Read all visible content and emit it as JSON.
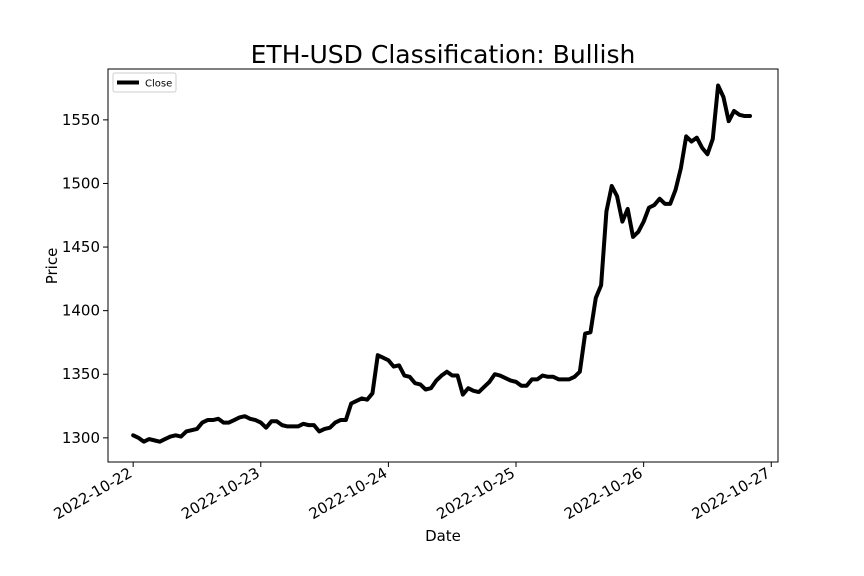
{
  "chart_data": {
    "type": "line",
    "title": "ETH-USD Classification: Bullish",
    "xlabel": "Date",
    "ylabel": "Price",
    "x_range": [
      "2022-10-21T19:16",
      "2022-10-27T01:16"
    ],
    "ylim": [
      1281,
      1590
    ],
    "x_ticks": [
      "2022-10-22",
      "2022-10-23",
      "2022-10-24",
      "2022-10-25",
      "2022-10-26",
      "2022-10-27"
    ],
    "y_ticks": [
      1300,
      1350,
      1400,
      1450,
      1500,
      1550
    ],
    "grid": false,
    "legend_position": "upper-left",
    "colors": {
      "line": "#000000",
      "frame": "#000000",
      "background": "#ffffff"
    },
    "series": [
      {
        "name": "Close",
        "x": [
          "2022-10-22T00:00",
          "2022-10-22T01:00",
          "2022-10-22T02:00",
          "2022-10-22T03:00",
          "2022-10-22T04:00",
          "2022-10-22T05:00",
          "2022-10-22T06:00",
          "2022-10-22T07:00",
          "2022-10-22T08:00",
          "2022-10-22T09:00",
          "2022-10-22T10:00",
          "2022-10-22T11:00",
          "2022-10-22T12:00",
          "2022-10-22T13:00",
          "2022-10-22T14:00",
          "2022-10-22T15:00",
          "2022-10-22T16:00",
          "2022-10-22T17:00",
          "2022-10-22T18:00",
          "2022-10-22T19:00",
          "2022-10-22T20:00",
          "2022-10-22T21:00",
          "2022-10-22T22:00",
          "2022-10-22T23:00",
          "2022-10-23T00:00",
          "2022-10-23T01:00",
          "2022-10-23T02:00",
          "2022-10-23T03:00",
          "2022-10-23T04:00",
          "2022-10-23T05:00",
          "2022-10-23T06:00",
          "2022-10-23T07:00",
          "2022-10-23T08:00",
          "2022-10-23T09:00",
          "2022-10-23T10:00",
          "2022-10-23T11:00",
          "2022-10-23T12:00",
          "2022-10-23T13:00",
          "2022-10-23T14:00",
          "2022-10-23T15:00",
          "2022-10-23T16:00",
          "2022-10-23T17:00",
          "2022-10-23T18:00",
          "2022-10-23T19:00",
          "2022-10-23T20:00",
          "2022-10-23T21:00",
          "2022-10-23T22:00",
          "2022-10-23T23:00",
          "2022-10-24T00:00",
          "2022-10-24T01:00",
          "2022-10-24T02:00",
          "2022-10-24T03:00",
          "2022-10-24T04:00",
          "2022-10-24T05:00",
          "2022-10-24T06:00",
          "2022-10-24T07:00",
          "2022-10-24T08:00",
          "2022-10-24T09:00",
          "2022-10-24T10:00",
          "2022-10-24T11:00",
          "2022-10-24T12:00",
          "2022-10-24T13:00",
          "2022-10-24T14:00",
          "2022-10-24T15:00",
          "2022-10-24T16:00",
          "2022-10-24T17:00",
          "2022-10-24T18:00",
          "2022-10-24T19:00",
          "2022-10-24T20:00",
          "2022-10-24T21:00",
          "2022-10-24T22:00",
          "2022-10-24T23:00",
          "2022-10-25T00:00",
          "2022-10-25T01:00",
          "2022-10-25T02:00",
          "2022-10-25T03:00",
          "2022-10-25T04:00",
          "2022-10-25T05:00",
          "2022-10-25T06:00",
          "2022-10-25T07:00",
          "2022-10-25T08:00",
          "2022-10-25T09:00",
          "2022-10-25T10:00",
          "2022-10-25T11:00",
          "2022-10-25T12:00",
          "2022-10-25T13:00",
          "2022-10-25T14:00",
          "2022-10-25T15:00",
          "2022-10-25T16:00",
          "2022-10-25T17:00",
          "2022-10-25T18:00",
          "2022-10-25T19:00",
          "2022-10-25T20:00",
          "2022-10-25T21:00",
          "2022-10-25T22:00",
          "2022-10-25T23:00",
          "2022-10-26T00:00",
          "2022-10-26T01:00",
          "2022-10-26T02:00",
          "2022-10-26T03:00",
          "2022-10-26T04:00",
          "2022-10-26T05:00",
          "2022-10-26T06:00",
          "2022-10-26T07:00",
          "2022-10-26T08:00",
          "2022-10-26T09:00",
          "2022-10-26T10:00",
          "2022-10-26T11:00",
          "2022-10-26T12:00",
          "2022-10-26T13:00",
          "2022-10-26T14:00",
          "2022-10-26T15:00",
          "2022-10-26T16:00",
          "2022-10-26T17:00",
          "2022-10-26T18:00",
          "2022-10-26T19:00",
          "2022-10-26T20:00"
        ],
        "values": [
          1302,
          1300,
          1297,
          1299,
          1298,
          1297,
          1299,
          1301,
          1302,
          1301,
          1305,
          1306,
          1307,
          1312,
          1314,
          1314,
          1315,
          1312,
          1312,
          1314,
          1316,
          1317,
          1315,
          1314,
          1312,
          1308,
          1313,
          1313,
          1310,
          1309,
          1309,
          1309,
          1311,
          1310,
          1310,
          1305,
          1307,
          1308,
          1312,
          1314,
          1314,
          1327,
          1329,
          1331,
          1330,
          1335,
          1365,
          1363,
          1361,
          1356,
          1357,
          1349,
          1348,
          1343,
          1342,
          1338,
          1339,
          1345,
          1349,
          1352,
          1349,
          1349,
          1334,
          1339,
          1337,
          1336,
          1340,
          1344,
          1350,
          1349,
          1347,
          1345,
          1344,
          1341,
          1341,
          1346,
          1346,
          1349,
          1348,
          1348,
          1346,
          1346,
          1346,
          1348,
          1352,
          1382,
          1383,
          1410,
          1420,
          1478,
          1498,
          1490,
          1470,
          1480,
          1458,
          1462,
          1470,
          1481,
          1483,
          1488,
          1484,
          1484,
          1495,
          1512,
          1537,
          1533,
          1536,
          1528,
          1523,
          1535,
          1577,
          1568,
          1549,
          1557,
          1554,
          1553,
          1553
        ]
      }
    ]
  }
}
